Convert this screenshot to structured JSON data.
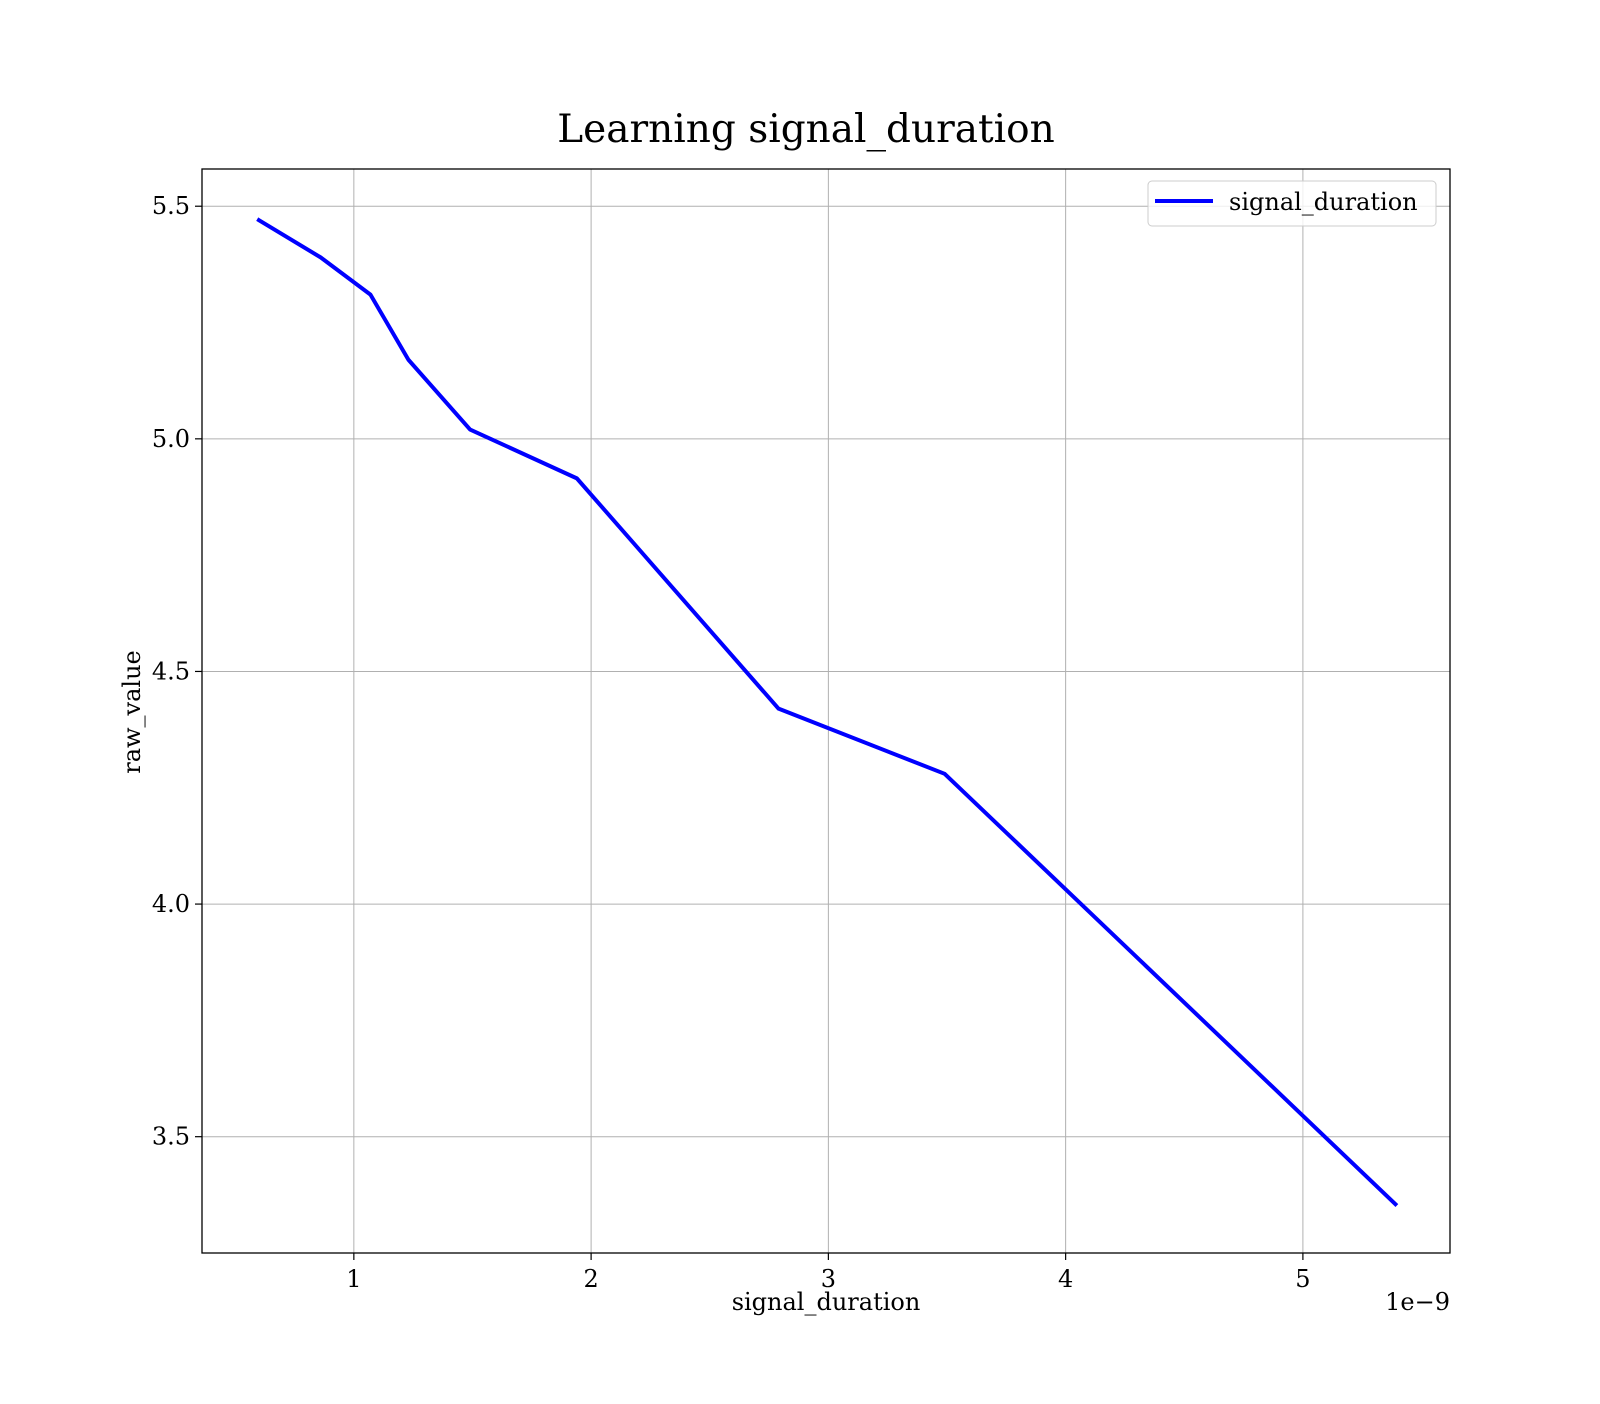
{
  "chart_data": {
    "type": "line",
    "title": "Learning signal_duration",
    "xlabel": "signal_duration",
    "ylabel": "raw_value",
    "x_offset_label": "1e−9",
    "x_ticks": [
      1,
      2,
      3,
      4,
      5
    ],
    "x_tick_labels": [
      "1",
      "2",
      "3",
      "4",
      "5"
    ],
    "y_ticks": [
      3.5,
      4.0,
      4.5,
      5.0,
      5.5
    ],
    "y_tick_labels": [
      "3.5",
      "4.0",
      "4.5",
      "5.0",
      "5.5"
    ],
    "xlim": [
      0.36,
      5.62
    ],
    "ylim": [
      3.25,
      5.58
    ],
    "grid": true,
    "legend_position": "top-right",
    "series": [
      {
        "name": "signal_duration",
        "color": "#0000ff",
        "x": [
          0.6,
          0.86,
          1.07,
          1.23,
          1.49,
          1.94,
          2.79,
          3.49,
          5.39
        ],
        "y": [
          5.47,
          5.39,
          5.31,
          5.17,
          5.02,
          4.915,
          4.42,
          4.28,
          3.355
        ]
      }
    ]
  }
}
